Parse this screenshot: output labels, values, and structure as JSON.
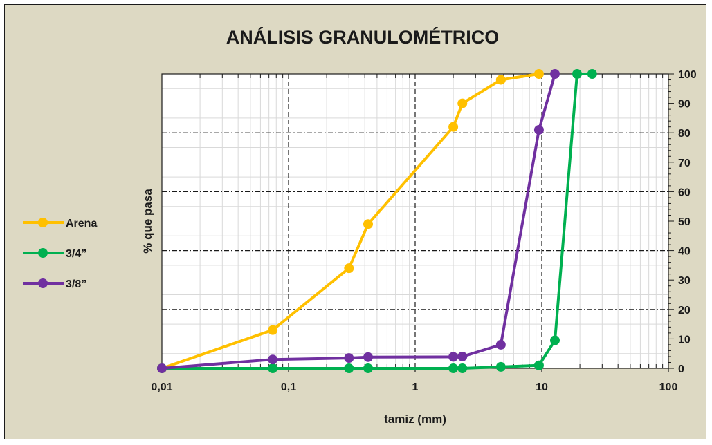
{
  "chart_data": {
    "type": "line",
    "title": "ANÁLISIS GRANULOMÉTRICO",
    "xlabel": "tamiz (mm)",
    "ylabel": "% que pasa",
    "x_scale": "log",
    "xlim": [
      0.01,
      100
    ],
    "ylim": [
      0,
      100
    ],
    "x_tick_labels": [
      "0,01",
      "0,1",
      "1",
      "10",
      "100"
    ],
    "y_tick_labels": [
      "0",
      "10",
      "20",
      "30",
      "40",
      "50",
      "60",
      "70",
      "80",
      "90",
      "100"
    ],
    "grid": true,
    "legend_position": "left",
    "series": [
      {
        "name": "Arena",
        "color": "#ffc000",
        "points": [
          [
            0.01,
            0
          ],
          [
            0.075,
            13
          ],
          [
            0.3,
            34
          ],
          [
            0.425,
            49
          ],
          [
            2.0,
            82
          ],
          [
            2.36,
            90
          ],
          [
            4.75,
            98
          ],
          [
            9.5,
            100
          ]
        ]
      },
      {
        "name": "3/4”",
        "color": "#00b050",
        "points": [
          [
            0.01,
            0
          ],
          [
            0.075,
            0
          ],
          [
            0.3,
            0
          ],
          [
            0.425,
            0
          ],
          [
            2.0,
            0
          ],
          [
            2.36,
            0
          ],
          [
            4.75,
            0.5
          ],
          [
            9.5,
            1
          ],
          [
            12.7,
            9.5
          ],
          [
            19.0,
            100
          ],
          [
            25.0,
            100
          ]
        ]
      },
      {
        "name": "3/8”",
        "color": "#7030a0",
        "points": [
          [
            0.01,
            0
          ],
          [
            0.075,
            3
          ],
          [
            0.3,
            3.5
          ],
          [
            0.425,
            3.8
          ],
          [
            2.0,
            3.9
          ],
          [
            2.36,
            4
          ],
          [
            4.75,
            8
          ],
          [
            9.5,
            81
          ],
          [
            12.7,
            100
          ]
        ]
      }
    ]
  }
}
